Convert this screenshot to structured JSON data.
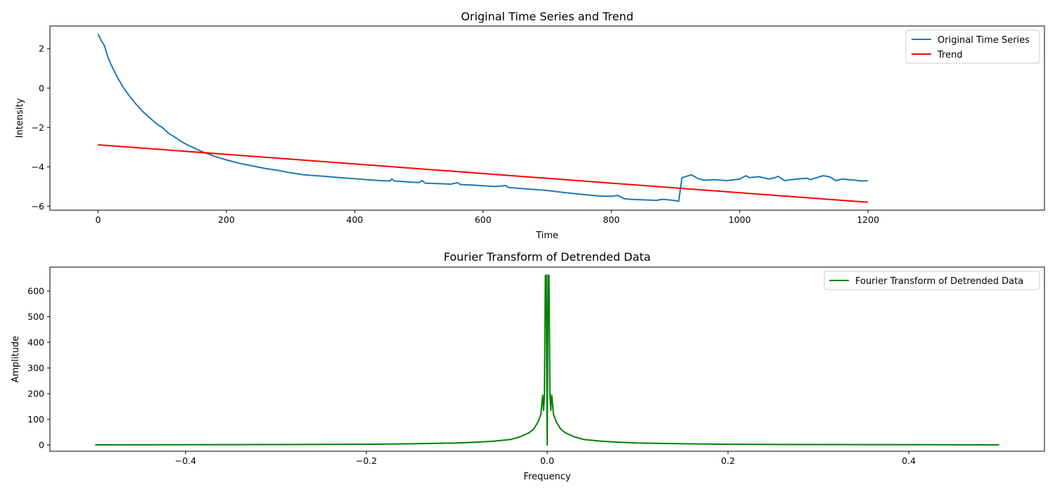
{
  "chart_data": [
    {
      "type": "line",
      "title": "Original Time Series and Trend",
      "xlabel": "Time",
      "ylabel": "Intensity",
      "xlim": [
        -75,
        1475
      ],
      "ylim": [
        -6.2,
        3.15
      ],
      "xticks": [
        0,
        200,
        400,
        600,
        800,
        1000,
        1200
      ],
      "xtick_labels": [
        "0",
        "200",
        "400",
        "600",
        "800",
        "1000",
        "1200"
      ],
      "yticks": [
        2,
        0,
        -2,
        -4,
        -6
      ],
      "ytick_labels": [
        "2",
        "0",
        "−2",
        "−4",
        "−6"
      ],
      "grid": false,
      "legend_position": "top-right",
      "series": [
        {
          "name": "Original Time Series",
          "color": "#1f77b4",
          "x": [
            0,
            5,
            10,
            15,
            20,
            30,
            40,
            50,
            60,
            70,
            80,
            90,
            95,
            100,
            110,
            120,
            130,
            140,
            150,
            160,
            170,
            180,
            190,
            200,
            220,
            240,
            260,
            280,
            300,
            320,
            340,
            360,
            380,
            400,
            420,
            440,
            455,
            458,
            462,
            480,
            500,
            505,
            510,
            530,
            550,
            560,
            565,
            580,
            600,
            620,
            635,
            640,
            660,
            680,
            700,
            720,
            740,
            760,
            780,
            800,
            810,
            820,
            830,
            850,
            870,
            880,
            890,
            900,
            905,
            910,
            915,
            925,
            935,
            945,
            960,
            980,
            1000,
            1010,
            1015,
            1030,
            1045,
            1055,
            1060,
            1070,
            1080,
            1095,
            1105,
            1110,
            1120,
            1130,
            1140,
            1150,
            1160,
            1170,
            1180,
            1190,
            1200
          ],
          "values": [
            2.75,
            2.4,
            2.15,
            1.6,
            1.2,
            0.55,
            0.0,
            -0.45,
            -0.85,
            -1.2,
            -1.5,
            -1.78,
            -1.9,
            -2.0,
            -2.3,
            -2.5,
            -2.72,
            -2.9,
            -3.05,
            -3.2,
            -3.32,
            -3.45,
            -3.55,
            -3.65,
            -3.82,
            -3.95,
            -4.08,
            -4.18,
            -4.3,
            -4.4,
            -4.45,
            -4.5,
            -4.56,
            -4.6,
            -4.66,
            -4.7,
            -4.72,
            -4.62,
            -4.72,
            -4.76,
            -4.8,
            -4.7,
            -4.83,
            -4.85,
            -4.88,
            -4.8,
            -4.9,
            -4.92,
            -4.96,
            -5.0,
            -4.95,
            -5.05,
            -5.1,
            -5.15,
            -5.2,
            -5.28,
            -5.35,
            -5.42,
            -5.48,
            -5.5,
            -5.45,
            -5.62,
            -5.65,
            -5.68,
            -5.7,
            -5.65,
            -5.68,
            -5.72,
            -5.75,
            -4.55,
            -4.5,
            -4.4,
            -4.6,
            -4.68,
            -4.65,
            -4.7,
            -4.62,
            -4.45,
            -4.55,
            -4.5,
            -4.62,
            -4.55,
            -4.48,
            -4.7,
            -4.65,
            -4.6,
            -4.58,
            -4.65,
            -4.55,
            -4.45,
            -4.5,
            -4.7,
            -4.62,
            -4.65,
            -4.68,
            -4.72,
            -4.7
          ]
        },
        {
          "name": "Trend",
          "color": "#ff0000",
          "x": [
            0,
            1200
          ],
          "values": [
            -2.88,
            -5.8
          ]
        }
      ]
    },
    {
      "type": "line",
      "title": "Fourier Transform of Detrended Data",
      "xlabel": "Frequency",
      "ylabel": "Amplitude",
      "xlim": [
        -0.55,
        0.55
      ],
      "ylim": [
        -24,
        693
      ],
      "xticks": [
        -0.4,
        -0.2,
        0.0,
        0.2,
        0.4
      ],
      "xtick_labels": [
        "−0.4",
        "−0.2",
        "0.0",
        "0.2",
        "0.4"
      ],
      "yticks": [
        0,
        100,
        200,
        300,
        400,
        500,
        600
      ],
      "ytick_labels": [
        "0",
        "100",
        "200",
        "300",
        "400",
        "500",
        "600"
      ],
      "grid": false,
      "legend_position": "top-right",
      "series": [
        {
          "name": "Fourier Transform of Detrended Data",
          "color": "#008000",
          "x": [
            -0.5,
            -0.3,
            -0.2,
            -0.15,
            -0.1,
            -0.08,
            -0.06,
            -0.04,
            -0.03,
            -0.02,
            -0.015,
            -0.01,
            -0.007,
            -0.005,
            -0.004,
            -0.003,
            -0.002,
            -0.001,
            0.0,
            0.001,
            0.002,
            0.003,
            0.004,
            0.005,
            0.007,
            0.01,
            0.015,
            0.02,
            0.03,
            0.04,
            0.06,
            0.08,
            0.1,
            0.15,
            0.2,
            0.3,
            0.5
          ],
          "values": [
            1,
            2,
            3,
            5,
            8,
            11,
            15,
            22,
            32,
            48,
            62,
            90,
            120,
            195,
            135,
            195,
            660,
            662,
            0,
            662,
            660,
            195,
            135,
            195,
            120,
            90,
            62,
            48,
            32,
            22,
            15,
            11,
            8,
            5,
            3,
            2,
            1
          ]
        }
      ]
    }
  ]
}
